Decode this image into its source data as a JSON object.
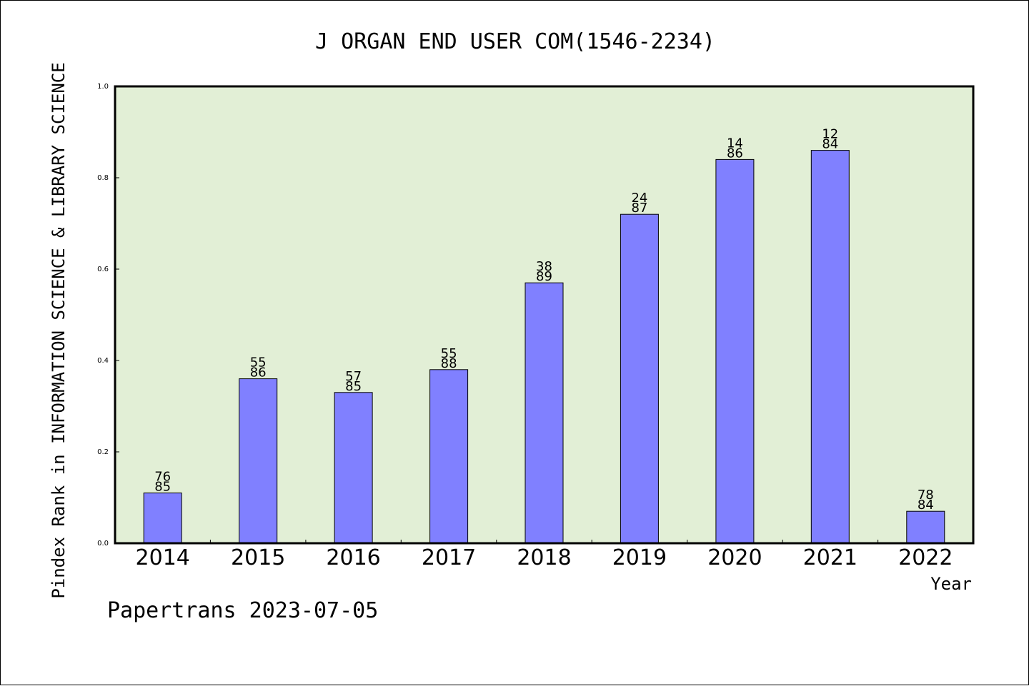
{
  "chart_data": {
    "type": "bar",
    "title": "J ORGAN END USER COM(1546-2234)",
    "xlabel": "Year",
    "ylabel": "Pindex Rank in INFORMATION SCIENCE & LIBRARY SCIENCE",
    "footer": "Papertrans 2023-07-05",
    "categories": [
      "2014",
      "2015",
      "2016",
      "2017",
      "2018",
      "2019",
      "2020",
      "2021",
      "2022"
    ],
    "values": [
      0.11,
      0.36,
      0.33,
      0.38,
      0.57,
      0.72,
      0.84,
      0.86,
      0.07
    ],
    "labels_top": [
      "76",
      "55",
      "57",
      "55",
      "38",
      "24",
      "14",
      "12",
      "78"
    ],
    "labels_bottom": [
      "85",
      "86",
      "85",
      "88",
      "89",
      "87",
      "86",
      "84",
      "84"
    ],
    "ylim": [
      0,
      1.0
    ],
    "yticks": [
      "0.0",
      "0.2",
      "0.4",
      "0.6",
      "0.8",
      "1.0"
    ],
    "grid": false,
    "colors": {
      "bar": "#8080ff",
      "plot_background": "#e2efd6",
      "axis": "#000000"
    }
  }
}
